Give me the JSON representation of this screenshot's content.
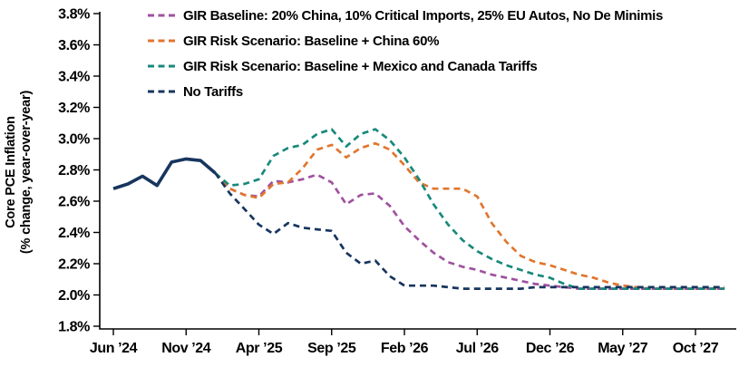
{
  "chart_data": {
    "type": "line",
    "title": "",
    "y_axis_title_line1": "Core PCE Inflation",
    "y_axis_title_line2": "(% change, year-over-year)",
    "ylim": [
      1.8,
      3.8
    ],
    "y_tick_labels": [
      "3.8%",
      "3.6%",
      "3.4%",
      "3.2%",
      "3.0%",
      "2.8%",
      "2.6%",
      "2.4%",
      "2.2%",
      "2.0%",
      "1.8%"
    ],
    "y_tick_values": [
      3.8,
      3.6,
      3.4,
      3.2,
      3.0,
      2.8,
      2.6,
      2.4,
      2.2,
      2.0,
      1.8
    ],
    "x_tick_labels": [
      "Jun ’24",
      "Nov ’24",
      "Apr ’25",
      "Sep ’25",
      "Feb ’26",
      "Jul ’26",
      "Dec ’26",
      "May ’27",
      "Oct ’27"
    ],
    "x_tick_months": [
      0,
      5,
      10,
      15,
      20,
      25,
      30,
      35,
      40
    ],
    "x_month_zero": "Jun 2024",
    "grid": false,
    "legend_position": "top",
    "series": [
      {
        "name": "historical",
        "color": "#17355E",
        "style": "solid",
        "start_month": 0,
        "values": [
          2.68,
          2.71,
          2.76,
          2.7,
          2.85,
          2.87,
          2.86,
          2.78
        ]
      },
      {
        "name": "GIR Baseline: 20% China, 10% Critical Imports, 25% EU Autos, No De Minimis",
        "color": "#A0519F",
        "style": "dashed",
        "start_month": 7,
        "values": [
          2.78,
          2.68,
          2.64,
          2.63,
          2.73,
          2.72,
          2.74,
          2.77,
          2.72,
          2.58,
          2.64,
          2.65,
          2.57,
          2.44,
          2.35,
          2.27,
          2.21,
          2.18,
          2.16,
          2.13,
          2.11,
          2.09,
          2.07,
          2.06,
          2.05,
          2.04,
          2.04,
          2.04,
          2.04,
          2.04,
          2.04,
          2.04,
          2.04,
          2.04,
          2.04,
          2.04
        ]
      },
      {
        "name": "GIR Risk Scenario: Baseline + China 60%",
        "color": "#E0762F",
        "style": "dashed",
        "start_month": 7,
        "values": [
          2.78,
          2.68,
          2.64,
          2.62,
          2.71,
          2.72,
          2.81,
          2.93,
          2.96,
          2.88,
          2.94,
          2.97,
          2.93,
          2.83,
          2.72,
          2.68,
          2.68,
          2.68,
          2.63,
          2.46,
          2.34,
          2.25,
          2.21,
          2.19,
          2.16,
          2.13,
          2.11,
          2.08,
          2.06,
          2.05,
          2.04,
          2.04,
          2.04,
          2.04,
          2.04,
          2.04
        ]
      },
      {
        "name": "GIR Risk Scenario: Baseline + Mexico and Canada Tariffs",
        "color": "#18897B",
        "style": "dashed",
        "start_month": 7,
        "values": [
          2.78,
          2.7,
          2.71,
          2.74,
          2.89,
          2.94,
          2.96,
          3.03,
          3.06,
          2.95,
          3.03,
          3.06,
          2.99,
          2.88,
          2.74,
          2.58,
          2.45,
          2.35,
          2.28,
          2.23,
          2.19,
          2.16,
          2.13,
          2.11,
          2.07,
          2.04,
          2.04,
          2.04,
          2.04,
          2.04,
          2.04,
          2.04,
          2.04,
          2.04,
          2.04,
          2.04
        ]
      },
      {
        "name": "No Tariffs",
        "color": "#17355E",
        "style": "dashed",
        "start_month": 7,
        "values": [
          2.78,
          2.65,
          2.55,
          2.45,
          2.39,
          2.46,
          2.43,
          2.42,
          2.41,
          2.27,
          2.2,
          2.22,
          2.12,
          2.06,
          2.06,
          2.06,
          2.05,
          2.04,
          2.04,
          2.04,
          2.04,
          2.04,
          2.05,
          2.05,
          2.05,
          2.05,
          2.05,
          2.05,
          2.05,
          2.05,
          2.05,
          2.05,
          2.05,
          2.05,
          2.05,
          2.05
        ]
      }
    ]
  }
}
